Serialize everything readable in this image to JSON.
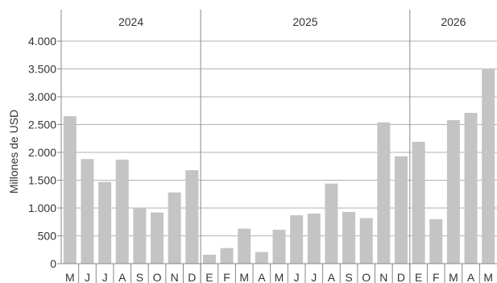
{
  "chart_data": {
    "type": "bar",
    "ylabel": "Millones de USD",
    "ylim": [
      0,
      4000
    ],
    "yticks": [
      0,
      500,
      1000,
      1500,
      2000,
      2500,
      3000,
      3500,
      4000
    ],
    "ytick_labels": [
      "0",
      "500",
      "1.000",
      "1.500",
      "2.000",
      "2.500",
      "3.000",
      "3.500",
      "4.000"
    ],
    "grid": true,
    "bar_color": "#c4c4c4",
    "grid_color": "#b3b3b3",
    "years": [
      {
        "label": "2024",
        "start": 0,
        "count": 8
      },
      {
        "label": "2025",
        "start": 8,
        "count": 12
      },
      {
        "label": "2026",
        "start": 20,
        "count": 5
      }
    ],
    "categories": [
      "M",
      "J",
      "J",
      "A",
      "S",
      "O",
      "N",
      "D",
      "E",
      "F",
      "M",
      "A",
      "M",
      "J",
      "J",
      "A",
      "S",
      "O",
      "N",
      "D",
      "E",
      "F",
      "M",
      "A",
      "M"
    ],
    "values": [
      2650,
      1880,
      1470,
      1870,
      1000,
      920,
      1280,
      1680,
      160,
      280,
      630,
      210,
      610,
      870,
      900,
      1440,
      930,
      820,
      2540,
      1930,
      2190,
      800,
      2580,
      2710,
      3510
    ]
  }
}
